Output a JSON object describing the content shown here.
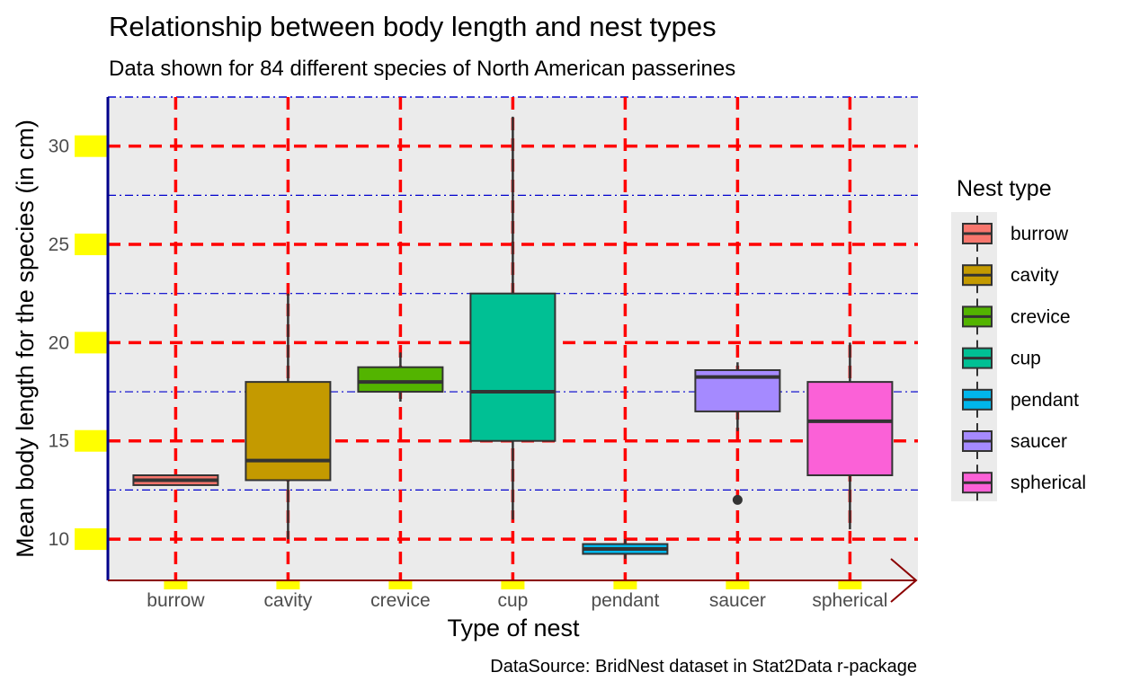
{
  "chart_data": {
    "type": "box",
    "title": "Relationship between body length and nest types",
    "subtitle": "Data shown for 84 different species of North American passerines",
    "xlabel": "Type of nest",
    "ylabel": "Mean body length for the species (in cm)",
    "caption": "DataSource: BridNest dataset in Stat2Data r-package",
    "ylim": [
      7.9,
      32.5
    ],
    "yticks": [
      10,
      15,
      20,
      25,
      30
    ],
    "ytick_labels": [
      "10",
      "15",
      "20",
      "25",
      "30"
    ],
    "legend_title": "Nest type",
    "legend_position": "right",
    "grid": true,
    "categories": [
      "burrow",
      "cavity",
      "crevice",
      "cup",
      "pendant",
      "saucer",
      "spherical"
    ],
    "boxes": [
      {
        "name": "burrow",
        "color": "#F8766D",
        "whisker_low": 12.75,
        "q1": 12.75,
        "median": 13.0,
        "q3": 13.25,
        "whisker_high": 13.25,
        "outliers": []
      },
      {
        "name": "cavity",
        "color": "#C49A00",
        "whisker_low": 10.0,
        "q1": 13.0,
        "median": 14.0,
        "q3": 18.0,
        "whisker_high": 22.5,
        "outliers": []
      },
      {
        "name": "crevice",
        "color": "#53B400",
        "whisker_low": 17.0,
        "q1": 17.5,
        "median": 18.0,
        "q3": 18.75,
        "whisker_high": 19.5,
        "outliers": []
      },
      {
        "name": "cup",
        "color": "#00C094",
        "whisker_low": 11.0,
        "q1": 15.0,
        "median": 17.5,
        "q3": 22.5,
        "whisker_high": 31.5,
        "outliers": []
      },
      {
        "name": "pendant",
        "color": "#00B6EB",
        "whisker_low": 9.0,
        "q1": 9.25,
        "median": 9.5,
        "q3": 9.75,
        "whisker_high": 10.0,
        "outliers": []
      },
      {
        "name": "saucer",
        "color": "#A58AFF",
        "whisker_low": 15.5,
        "q1": 16.5,
        "median": 18.25,
        "q3": 18.6,
        "whisker_high": 19.0,
        "outliers": [
          12.0
        ]
      },
      {
        "name": "spherical",
        "color": "#FB61D7",
        "whisker_low": 10.5,
        "q1": 13.25,
        "median": 16.0,
        "q3": 18.0,
        "whisker_high": 20.0,
        "outliers": []
      }
    ]
  }
}
